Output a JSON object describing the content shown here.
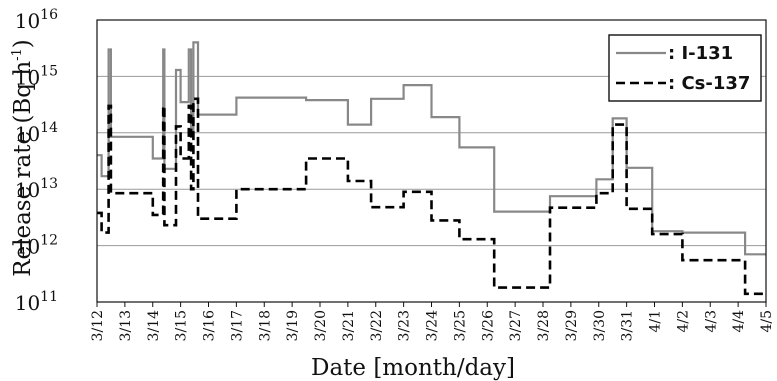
{
  "chart_data": {
    "type": "line",
    "title": "",
    "xlabel": "Date [month/day]",
    "ylabel": "Release rate (Bq h",
    "ylabel_sup": "-1",
    "ylabel_close": ")",
    "y_scale": "log",
    "ylim": [
      100000000000,
      10000000000000000
    ],
    "xlim": [
      "3/12",
      "4/5"
    ],
    "grid": "horizontal",
    "legend_position": "top-right",
    "x_ticks": [
      "3/12",
      "3/13",
      "3/14",
      "3/15",
      "3/16",
      "3/17",
      "3/18",
      "3/19",
      "3/20",
      "3/21",
      "3/22",
      "3/23",
      "3/24",
      "3/25",
      "3/26",
      "3/27",
      "3/28",
      "3/29",
      "3/30",
      "3/31",
      "4/1",
      "4/2",
      "4/3",
      "4/4",
      "4/5"
    ],
    "y_ticks": [
      {
        "base": "10",
        "exp": "11"
      },
      {
        "base": "10",
        "exp": "12"
      },
      {
        "base": "10",
        "exp": "13"
      },
      {
        "base": "10",
        "exp": "14"
      },
      {
        "base": "10",
        "exp": "15"
      },
      {
        "base": "10",
        "exp": "16"
      }
    ],
    "series": [
      {
        "name": ": I-131",
        "color": "#888888",
        "style": "solid",
        "points": [
          [
            "3/12 00:00",
            40000000000000.0
          ],
          [
            "3/12 04:00",
            40000000000000.0
          ],
          [
            "3/12 04:00",
            17000000000000.0
          ],
          [
            "3/12 10:00",
            17000000000000.0
          ],
          [
            "3/12 10:00",
            3000000000000000.0
          ],
          [
            "3/12 12:00",
            3000000000000000.0
          ],
          [
            "3/12 12:00",
            85000000000000.0
          ],
          [
            "3/14 00:00",
            85000000000000.0
          ],
          [
            "3/14 00:00",
            35000000000000.0
          ],
          [
            "3/14 09:00",
            35000000000000.0
          ],
          [
            "3/14 09:00",
            3000000000000000.0
          ],
          [
            "3/14 10:00",
            3000000000000000.0
          ],
          [
            "3/14 10:00",
            23000000000000.0
          ],
          [
            "3/14 20:00",
            23000000000000.0
          ],
          [
            "3/14 20:00",
            1300000000000000.0
          ],
          [
            "3/15 00:00",
            1300000000000000.0
          ],
          [
            "3/15 00:00",
            350000000000000.0
          ],
          [
            "3/15 07:00",
            350000000000000.0
          ],
          [
            "3/15 07:00",
            3000000000000000.0
          ],
          [
            "3/15 09:00",
            3000000000000000.0
          ],
          [
            "3/15 09:00",
            100000000000000.0
          ],
          [
            "3/15 11:00",
            100000000000000.0
          ],
          [
            "3/15 11:00",
            4000000000000000.0
          ],
          [
            "3/15 15:00",
            4000000000000000.0
          ],
          [
            "3/15 15:00",
            210000000000000.0
          ],
          [
            "3/17 00:00",
            210000000000000.0
          ],
          [
            "3/17 00:00",
            420000000000000.0
          ],
          [
            "3/19 12:00",
            420000000000000.0
          ],
          [
            "3/19 12:00",
            380000000000000.0
          ],
          [
            "3/21 00:00",
            380000000000000.0
          ],
          [
            "3/21 00:00",
            140000000000000.0
          ],
          [
            "3/21 20:00",
            140000000000000.0
          ],
          [
            "3/21 20:00",
            400000000000000.0
          ],
          [
            "3/23 00:00",
            400000000000000.0
          ],
          [
            "3/23 00:00",
            700000000000000.0
          ],
          [
            "3/24 00:00",
            700000000000000.0
          ],
          [
            "3/24 00:00",
            190000000000000.0
          ],
          [
            "3/25 00:00",
            190000000000000.0
          ],
          [
            "3/25 00:00",
            55000000000000.0
          ],
          [
            "3/26 06:00",
            55000000000000.0
          ],
          [
            "3/26 06:00",
            4000000000000.0
          ],
          [
            "3/28 06:00",
            4000000000000.0
          ],
          [
            "3/28 06:00",
            7500000000000.0
          ],
          [
            "3/29 22:00",
            7500000000000.0
          ],
          [
            "3/29 22:00",
            15000000000000.0
          ],
          [
            "3/30 12:00",
            15000000000000.0
          ],
          [
            "3/30 12:00",
            180000000000000.0
          ],
          [
            "3/31 00:00",
            180000000000000.0
          ],
          [
            "3/31 00:00",
            24000000000000.0
          ],
          [
            "3/31 22:00",
            24000000000000.0
          ],
          [
            "3/31 22:00",
            1800000000000.0
          ],
          [
            "4/2 00:00",
            1800000000000.0
          ],
          [
            "4/2 00:00",
            1700000000000.0
          ],
          [
            "4/4 06:00",
            1700000000000.0
          ],
          [
            "4/4 06:00",
            700000000000.0
          ],
          [
            "4/5 00:00",
            700000000000.0
          ]
        ]
      },
      {
        "name": ": Cs-137",
        "color": "#000000",
        "style": "dashed",
        "points": [
          [
            "3/12 00:00",
            3800000000000.0
          ],
          [
            "3/12 04:00",
            3800000000000.0
          ],
          [
            "3/12 04:00",
            1700000000000.0
          ],
          [
            "3/12 10:00",
            1700000000000.0
          ],
          [
            "3/12 10:00",
            300000000000000.0
          ],
          [
            "3/12 12:00",
            300000000000000.0
          ],
          [
            "3/12 12:00",
            8500000000000.0
          ],
          [
            "3/14 00:00",
            8500000000000.0
          ],
          [
            "3/14 00:00",
            3500000000000.0
          ],
          [
            "3/14 09:00",
            3500000000000.0
          ],
          [
            "3/14 09:00",
            300000000000000.0
          ],
          [
            "3/14 10:00",
            300000000000000.0
          ],
          [
            "3/14 10:00",
            2300000000000.0
          ],
          [
            "3/14 20:00",
            2300000000000.0
          ],
          [
            "3/14 20:00",
            130000000000000.0
          ],
          [
            "3/15 00:00",
            130000000000000.0
          ],
          [
            "3/15 00:00",
            35000000000000.0
          ],
          [
            "3/15 07:00",
            35000000000000.0
          ],
          [
            "3/15 07:00",
            300000000000000.0
          ],
          [
            "3/15 09:00",
            300000000000000.0
          ],
          [
            "3/15 09:00",
            10000000000000.0
          ],
          [
            "3/15 11:00",
            10000000000000.0
          ],
          [
            "3/15 11:00",
            400000000000000.0
          ],
          [
            "3/15 15:00",
            400000000000000.0
          ],
          [
            "3/15 15:00",
            3000000000000.0
          ],
          [
            "3/17 00:00",
            3000000000000.0
          ],
          [
            "3/17 00:00",
            10000000000000.0
          ],
          [
            "3/19 12:00",
            10000000000000.0
          ],
          [
            "3/19 12:00",
            35000000000000.0
          ],
          [
            "3/21 00:00",
            35000000000000.0
          ],
          [
            "3/21 00:00",
            14000000000000.0
          ],
          [
            "3/21 20:00",
            14000000000000.0
          ],
          [
            "3/21 20:00",
            4800000000000.0
          ],
          [
            "3/23 00:00",
            4800000000000.0
          ],
          [
            "3/23 00:00",
            9000000000000.0
          ],
          [
            "3/24 00:00",
            9000000000000.0
          ],
          [
            "3/24 00:00",
            2800000000000.0
          ],
          [
            "3/25 00:00",
            2800000000000.0
          ],
          [
            "3/25 00:00",
            1300000000000.0
          ],
          [
            "3/26 06:00",
            1300000000000.0
          ],
          [
            "3/26 06:00",
            180000000000.0
          ],
          [
            "3/28 06:00",
            180000000000.0
          ],
          [
            "3/28 06:00",
            4700000000000.0
          ],
          [
            "3/29 22:00",
            4700000000000.0
          ],
          [
            "3/29 22:00",
            8500000000000.0
          ],
          [
            "3/30 12:00",
            8500000000000.0
          ],
          [
            "3/30 12:00",
            140000000000000.0
          ],
          [
            "3/31 00:00",
            140000000000000.0
          ],
          [
            "3/31 00:00",
            4500000000000.0
          ],
          [
            "3/31 22:00",
            4500000000000.0
          ],
          [
            "3/31 22:00",
            1600000000000.0
          ],
          [
            "4/2 00:00",
            1600000000000.0
          ],
          [
            "4/2 00:00",
            550000000000.0
          ],
          [
            "4/4 06:00",
            550000000000.0
          ],
          [
            "4/4 06:00",
            140000000000.0
          ],
          [
            "4/5 00:00",
            140000000000.0
          ]
        ]
      }
    ]
  }
}
